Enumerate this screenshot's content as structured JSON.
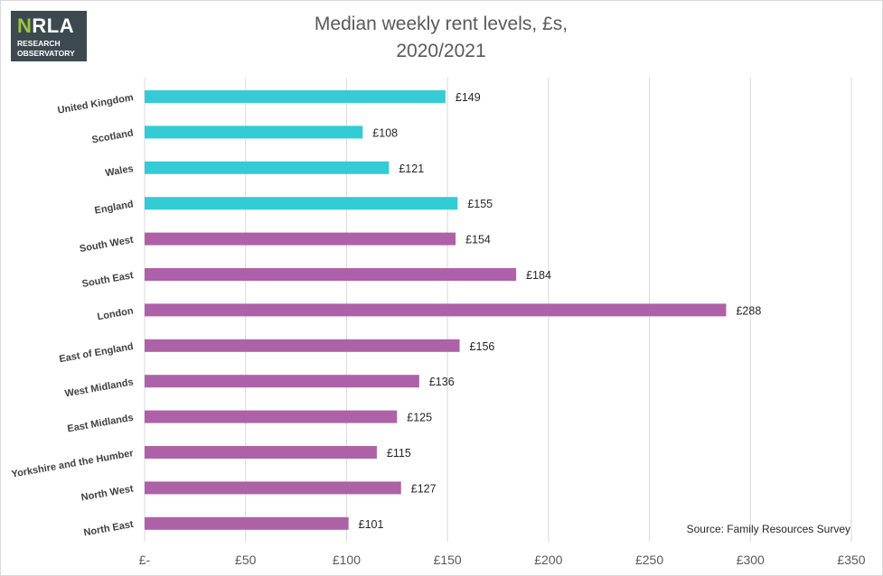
{
  "logo": {
    "brand_prefix": "N",
    "brand_rest": "RLA",
    "line1": "RESEARCH",
    "line2": "OBSERVATORY"
  },
  "chart_data": {
    "type": "bar",
    "orientation": "horizontal",
    "title": [
      "Median weekly rent levels, £s,",
      "2020/2021"
    ],
    "categories": [
      "United Kingdom",
      "Scotland",
      "Wales",
      "England",
      "South West",
      "South East",
      "London",
      "East of England",
      "West Midlands",
      "East Midlands",
      "Yorkshire and the Humber",
      "North West",
      "North East"
    ],
    "values": [
      149,
      108,
      121,
      155,
      154,
      184,
      288,
      156,
      136,
      125,
      115,
      127,
      101
    ],
    "data_labels": [
      "£149",
      "£108",
      "£121",
      "£155",
      "£154",
      "£184",
      "£288",
      "£156",
      "£136",
      "£125",
      "£115",
      "£127",
      "£101"
    ],
    "bar_colors": [
      "#33ccd4",
      "#33ccd4",
      "#33ccd4",
      "#33ccd4",
      "#ad62a8",
      "#ad62a8",
      "#ad62a8",
      "#ad62a8",
      "#ad62a8",
      "#ad62a8",
      "#ad62a8",
      "#ad62a8",
      "#ad62a8"
    ],
    "xlim": [
      0,
      350
    ],
    "x_ticks": [
      0,
      50,
      100,
      150,
      200,
      250,
      300,
      350
    ],
    "x_tick_labels": [
      "£-",
      "£50",
      "£100",
      "£150",
      "£200",
      "£250",
      "£300",
      "£350"
    ],
    "grid": true,
    "source_note": "Source: Family Resources Survey"
  }
}
